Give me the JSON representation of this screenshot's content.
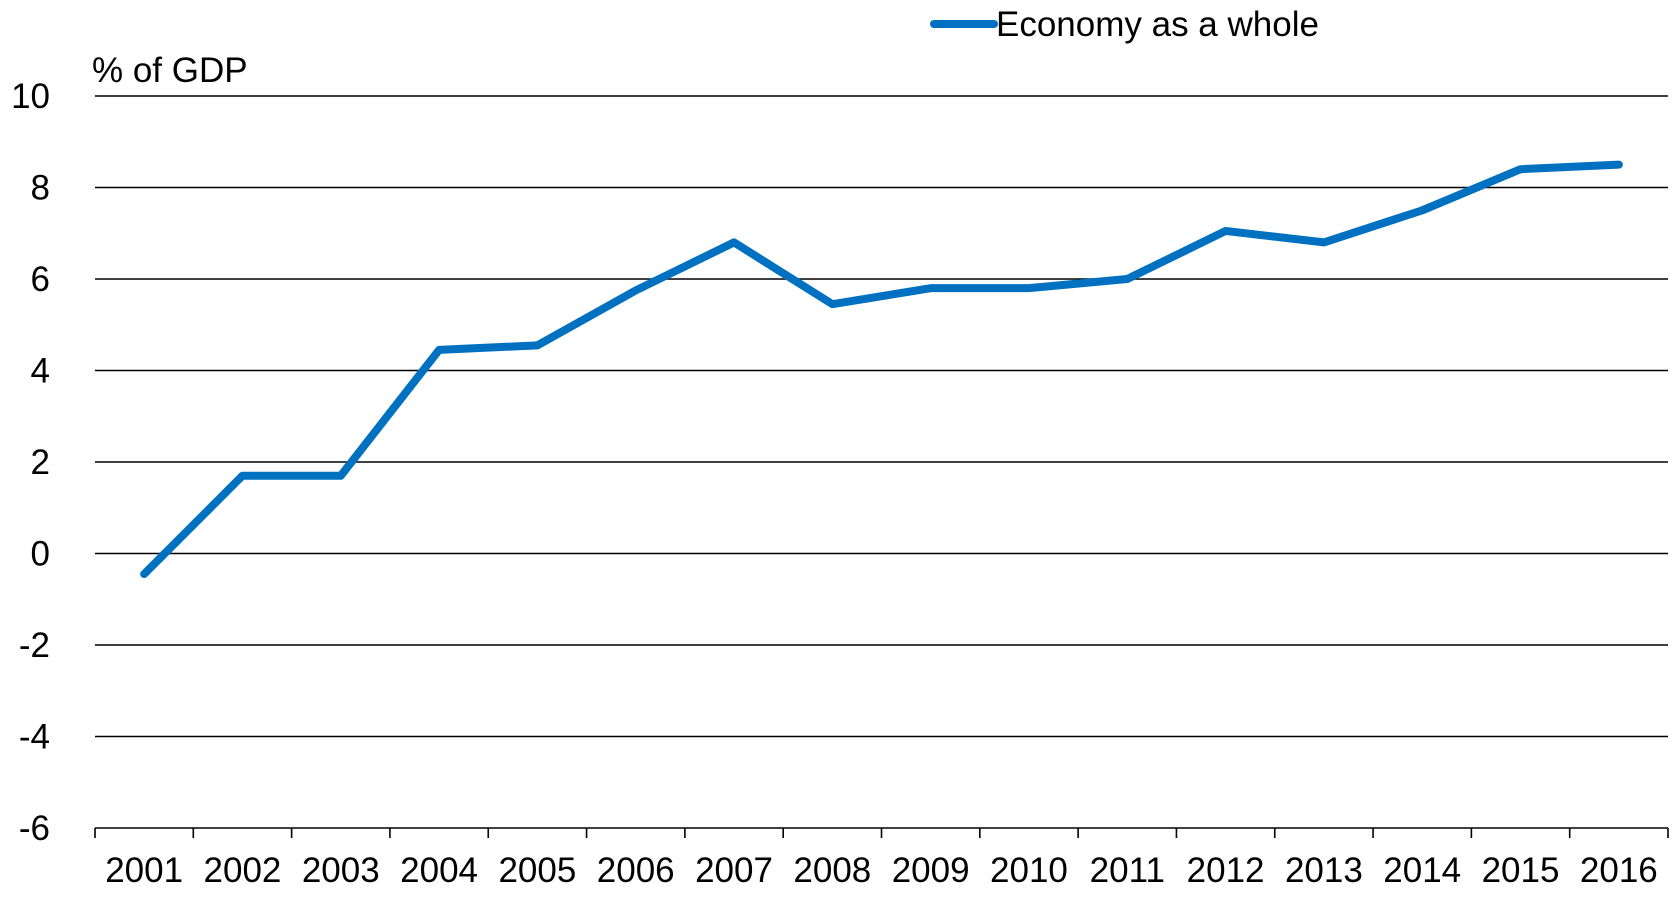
{
  "chart_data": {
    "type": "line",
    "title": "",
    "xlabel": "",
    "ylabel": "% of GDP",
    "ylim": [
      -6,
      10
    ],
    "yticks": [
      "10",
      "8",
      "6",
      "4",
      "2",
      "0",
      "-2",
      "-4",
      "-6"
    ],
    "grid": "horizontal",
    "legend_position": "top",
    "categories": [
      "2001",
      "2002",
      "2003",
      "2004",
      "2005",
      "2006",
      "2007",
      "2008",
      "2009",
      "2010",
      "2011",
      "2012",
      "2013",
      "2014",
      "2015",
      "2016"
    ],
    "series": [
      {
        "name": "Economy as a whole",
        "color": "#0070C0",
        "values": [
          -0.45,
          1.7,
          1.7,
          4.45,
          4.55,
          5.75,
          6.8,
          5.45,
          5.8,
          5.8,
          6.0,
          7.05,
          6.8,
          7.5,
          8.4,
          8.5
        ]
      }
    ]
  }
}
